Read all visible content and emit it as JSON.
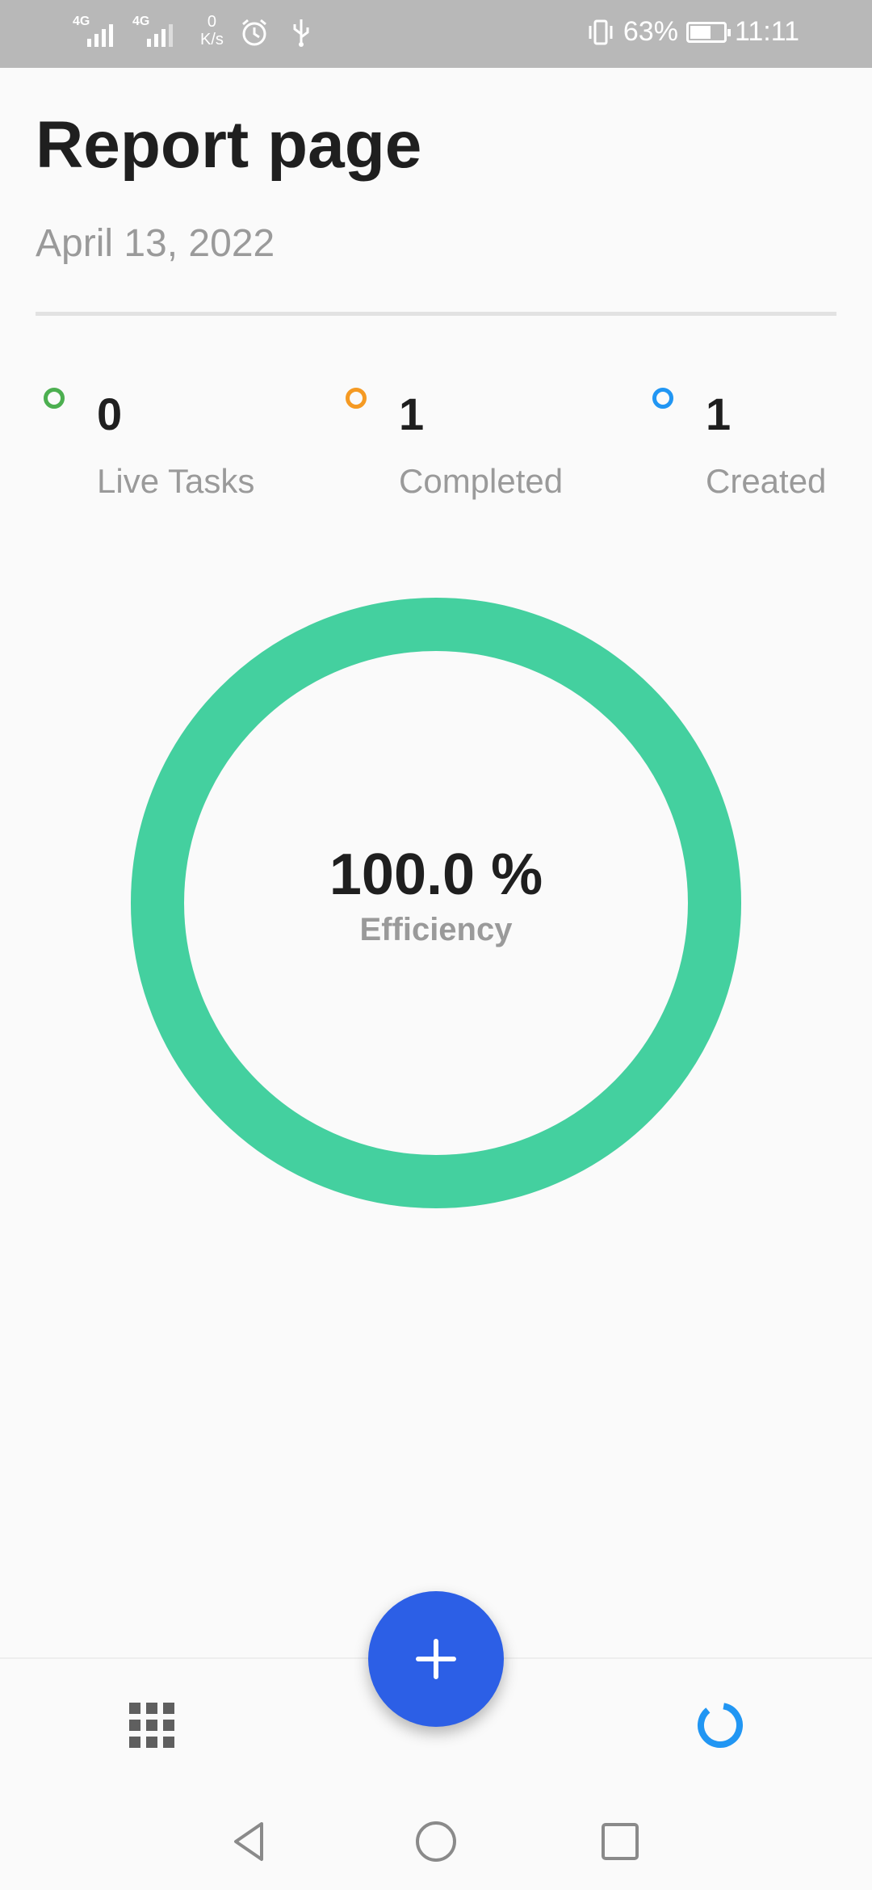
{
  "status_bar": {
    "network_1": "4G",
    "network_2": "4G",
    "net_speed_value": "0",
    "net_speed_unit": "K/s",
    "battery_percent": "63%",
    "battery_level": 0.63,
    "time": "11:11"
  },
  "header": {
    "title": "Report page",
    "date": "April 13, 2022"
  },
  "stats": [
    {
      "value": "0",
      "label": "Live Tasks",
      "color": "#4caf50"
    },
    {
      "value": "1",
      "label": "Completed",
      "color": "#f59a23"
    },
    {
      "value": "1",
      "label": "Created",
      "color": "#2196f3"
    }
  ],
  "efficiency": {
    "value_text": "100.0 %",
    "fraction": 1.0,
    "label": "Efficiency",
    "ring_color": "#44d09f"
  },
  "bottom_nav": {
    "left_icon": "grid-icon",
    "fab_icon": "plus-icon",
    "right_icon": "donut-chart-icon",
    "fab_color": "#2c5fe6",
    "active_color": "#2196f3"
  },
  "system_nav": {
    "back_icon": "back-triangle-icon",
    "home_icon": "home-circle-icon",
    "recents_icon": "recents-square-icon"
  }
}
